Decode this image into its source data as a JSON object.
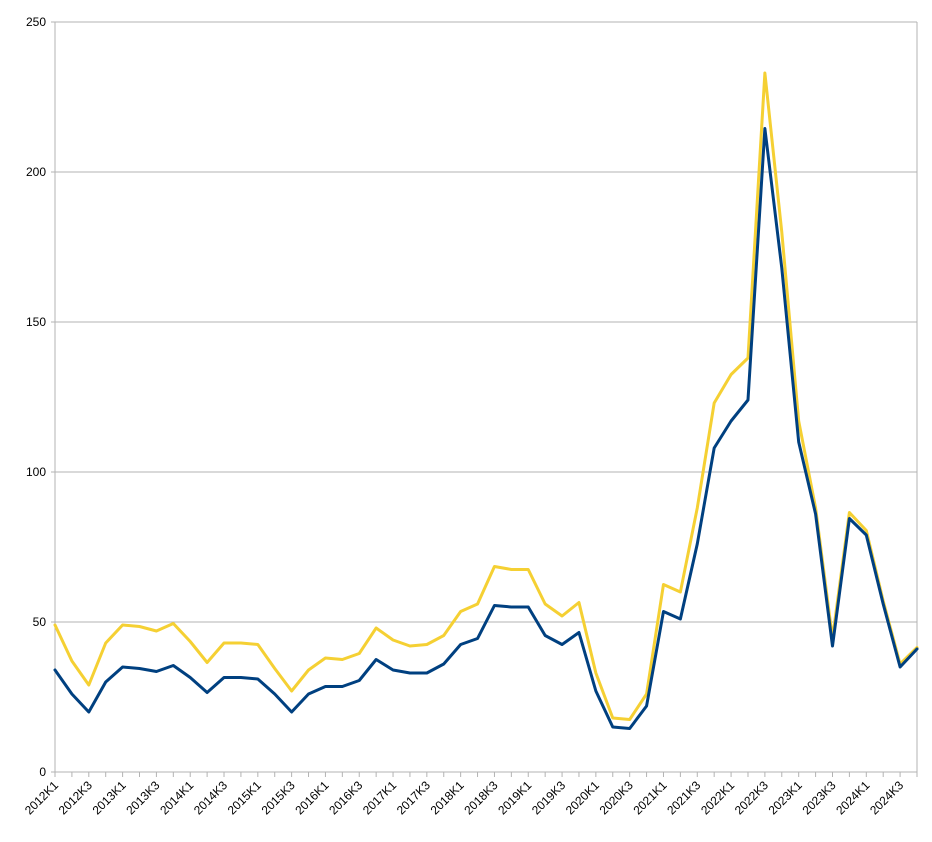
{
  "chart_data": {
    "type": "line",
    "title": "",
    "xlabel": "",
    "ylabel": "",
    "ylim": [
      0,
      250
    ],
    "yticks": [
      0,
      50,
      100,
      150,
      200,
      250
    ],
    "grid": true,
    "legend": "none",
    "x": [
      "2012K1",
      "2012K2",
      "2012K3",
      "2012K4",
      "2013K1",
      "2013K2",
      "2013K3",
      "2013K4",
      "2014K1",
      "2014K2",
      "2014K3",
      "2014K4",
      "2015K1",
      "2015K2",
      "2015K3",
      "2015K4",
      "2016K1",
      "2016K2",
      "2016K3",
      "2016K4",
      "2017K1",
      "2017K2",
      "2017K3",
      "2017K4",
      "2018K1",
      "2018K2",
      "2018K3",
      "2018K4",
      "2019K1",
      "2019K2",
      "2019K3",
      "2019K4",
      "2020K1",
      "2020K2",
      "2020K3",
      "2020K4",
      "2021K1",
      "2021K2",
      "2021K3",
      "2021K4",
      "2022K1",
      "2022K2",
      "2022K3",
      "2022K4",
      "2023K1",
      "2023K2",
      "2023K3",
      "2023K4",
      "2024K1",
      "2024K2",
      "2024K3",
      "2024K4"
    ],
    "x_tick_labels": [
      "2012K1",
      "2012K3",
      "2013K1",
      "2013K3",
      "2014K1",
      "2014K3",
      "2015K1",
      "2015K3",
      "2016K1",
      "2016K3",
      "2017K1",
      "2017K3",
      "2018K1",
      "2018K3",
      "2019K1",
      "2019K3",
      "2020K1",
      "2020K3",
      "2021K1",
      "2021K3",
      "2022K1",
      "2022K3",
      "2023K1",
      "2023K3",
      "2024K1",
      "2024K3"
    ],
    "series": [
      {
        "color": "#f5d033",
        "values": [
          49,
          37,
          29,
          43,
          49,
          48.5,
          47,
          49.5,
          43.5,
          36.5,
          43,
          43,
          42.5,
          34.5,
          27,
          34,
          38,
          37.5,
          39.5,
          48,
          44,
          42,
          42.5,
          45.5,
          53.5,
          56,
          68.5,
          67.5,
          67.5,
          56,
          52,
          56.5,
          33,
          18,
          17.5,
          26,
          62.5,
          60,
          88,
          123,
          132.5,
          138,
          233,
          180,
          117,
          88,
          44.5,
          86.5,
          80.5,
          57,
          36,
          41.5
        ]
      },
      {
        "color": "#004080",
        "values": [
          34,
          26,
          20,
          30,
          35,
          34.5,
          33.5,
          35.5,
          31.5,
          26.5,
          31.5,
          31.5,
          31,
          26,
          20,
          26,
          28.5,
          28.5,
          30.5,
          37.5,
          34,
          33,
          33,
          36,
          42.5,
          44.5,
          55.5,
          55,
          55,
          45.5,
          42.5,
          46.5,
          27,
          15,
          14.5,
          22,
          53.5,
          51,
          76,
          108,
          117,
          124,
          214.5,
          168,
          110,
          86,
          42,
          84.5,
          79,
          56,
          35,
          41
        ]
      }
    ]
  }
}
